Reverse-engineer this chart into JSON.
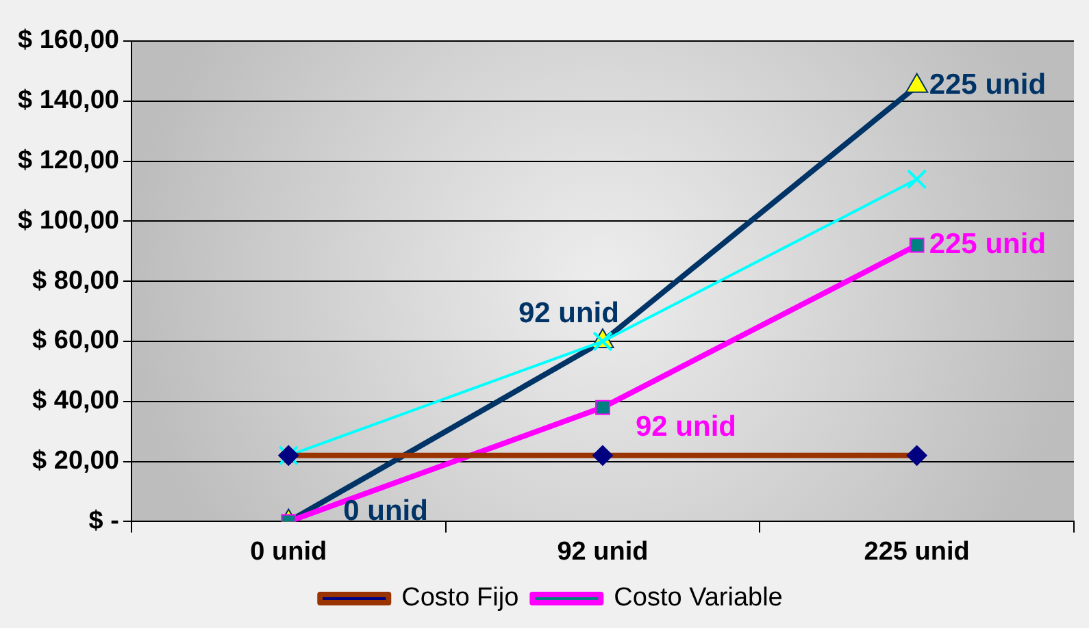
{
  "chart_data": {
    "type": "line",
    "categories": [
      "0 unid",
      "92 unid",
      "225 unid"
    ],
    "series": [
      {
        "name": "Costo Fijo",
        "color": "#993300",
        "marker": "diamond",
        "values": [
          22,
          22,
          22
        ]
      },
      {
        "name": "Costo Variable",
        "color": "#ff00ff",
        "marker": "square",
        "values": [
          0,
          38,
          92
        ]
      },
      {
        "color": "#00ffff",
        "marker": "cross",
        "values": [
          22,
          60,
          114
        ]
      },
      {
        "color": "#003366",
        "marker": "triangle",
        "values": [
          0,
          60,
          145
        ]
      }
    ],
    "ylim": [
      0,
      160
    ],
    "yticks": [
      {
        "value": 0,
        "label": "$ -"
      },
      {
        "value": 20,
        "label": "$ 20,00"
      },
      {
        "value": 40,
        "label": "$ 40,00"
      },
      {
        "value": 60,
        "label": "$ 60,00"
      },
      {
        "value": 80,
        "label": "$ 80,00"
      },
      {
        "value": 100,
        "label": "$ 100,00"
      },
      {
        "value": 120,
        "label": "$ 120,00"
      },
      {
        "value": 140,
        "label": "$ 140,00"
      },
      {
        "value": 160,
        "label": "$ 160,00"
      }
    ],
    "grid": "y",
    "legend": "bottom",
    "line_style": "solid",
    "annotations": [
      {
        "text": "0 unid",
        "x": "0 unid",
        "y": 0
      },
      {
        "text": "92 unid",
        "x": "92 unid",
        "y": 60
      },
      {
        "text": "225 unid",
        "x": "225 unid",
        "y": 145
      },
      {
        "text": "92 unid",
        "x": "92 unid",
        "y": 38
      },
      {
        "text": "225 unid",
        "x": "225 unid",
        "y": 92
      }
    ]
  }
}
